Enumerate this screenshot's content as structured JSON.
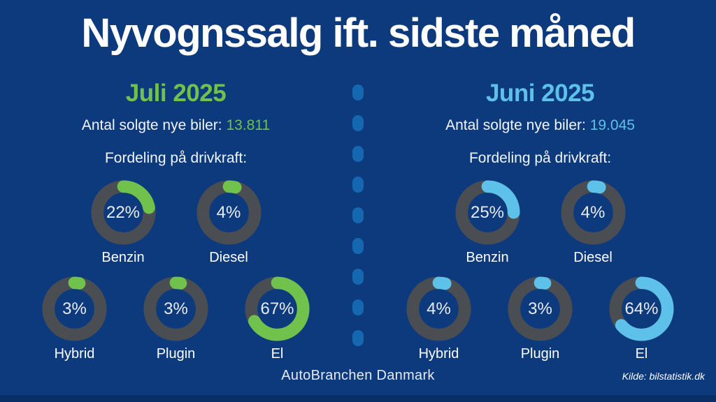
{
  "title": "Nyvognssalg ift. sidste måned",
  "colors": {
    "background": "#0d3a7d",
    "bottom_strip": "#0a2e66",
    "divider_dot": "#1567b0",
    "ring": "#4a4e53",
    "green_accent": "#70c24c",
    "blue_accent": "#5ec1ea"
  },
  "sections": [
    {
      "month": "Juli 2025",
      "accent": "#70c24c",
      "sold_label": "Antal solgte nye biler:",
      "sold_value": "13.811",
      "distribution_label": "Fordeling på drivkraft:",
      "donuts": [
        {
          "label": "Benzin",
          "percent": 22
        },
        {
          "label": "Diesel",
          "percent": 4
        },
        {
          "label": "Hybrid",
          "percent": 3
        },
        {
          "label": "Plugin",
          "percent": 3
        },
        {
          "label": "El",
          "percent": 67
        }
      ]
    },
    {
      "month": "Juni 2025",
      "accent": "#5ec1ea",
      "sold_label": "Antal solgte nye biler:",
      "sold_value": "19.045",
      "distribution_label": "Fordeling på drivkraft:",
      "donuts": [
        {
          "label": "Benzin",
          "percent": 25
        },
        {
          "label": "Diesel",
          "percent": 4
        },
        {
          "label": "Hybrid",
          "percent": 4
        },
        {
          "label": "Plugin",
          "percent": 3
        },
        {
          "label": "El",
          "percent": 64
        }
      ]
    }
  ],
  "footer": {
    "brand": "AutoBranchen Danmark",
    "source": "Kilde: bilstatistik.dk"
  },
  "chart_data": [
    {
      "type": "pie",
      "title": "Juli 2025",
      "subtitle": "Antal solgte nye biler: 13.811",
      "categories": [
        "Benzin",
        "Diesel",
        "Hybrid",
        "Plugin",
        "El"
      ],
      "values": [
        22,
        4,
        3,
        3,
        67
      ],
      "unit": "%",
      "style": "donut",
      "accent_color": "#70c24c"
    },
    {
      "type": "pie",
      "title": "Juni 2025",
      "subtitle": "Antal solgte nye biler: 19.045",
      "categories": [
        "Benzin",
        "Diesel",
        "Hybrid",
        "Plugin",
        "El"
      ],
      "values": [
        25,
        4,
        4,
        3,
        64
      ],
      "unit": "%",
      "style": "donut",
      "accent_color": "#5ec1ea"
    }
  ]
}
